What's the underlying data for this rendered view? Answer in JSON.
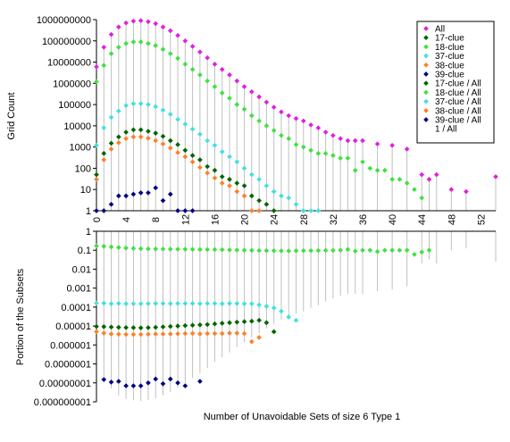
{
  "chart_data": {
    "type": "scatter",
    "xlabel": "Number of Unavoidable Sets of size 6 Type 1",
    "top": {
      "ylabel": "Grid Count",
      "scale": "log",
      "ylim": [
        1,
        1000000000
      ],
      "ytick_labels": [
        "1",
        "10",
        "100",
        "1000",
        "10000",
        "100000",
        "1000000",
        "10000000",
        "100000000",
        "1000000000"
      ]
    },
    "bottom": {
      "ylabel": "Portion of the Subsets",
      "scale": "log",
      "ylim": [
        1e-09,
        1
      ],
      "ytick_labels": [
        "1",
        "0.1",
        "0.01",
        "0.001",
        "0.0001",
        "0.00001",
        "0.000001",
        "0.0000001",
        "0.00000001",
        "0.000000001"
      ]
    },
    "xlim": [
      0,
      54
    ],
    "xtick_labels": [
      "0",
      "4",
      "8",
      "12",
      "16",
      "20",
      "24",
      "28",
      "32",
      "36",
      "40",
      "44",
      "48",
      "52"
    ],
    "legend_position": "top-right",
    "series": [
      {
        "name": "All",
        "panel": "top",
        "color": "#e020e0",
        "x": [
          0,
          1,
          2,
          3,
          4,
          5,
          6,
          7,
          8,
          9,
          10,
          11,
          12,
          13,
          14,
          15,
          16,
          17,
          18,
          19,
          20,
          21,
          22,
          23,
          24,
          25,
          26,
          27,
          28,
          29,
          30,
          31,
          32,
          33,
          34,
          35,
          36,
          38,
          40,
          42,
          44,
          45,
          46,
          48,
          50,
          54
        ],
        "y": [
          6000000,
          50000000,
          200000000,
          450000000,
          700000000,
          850000000,
          900000000,
          800000000,
          650000000,
          450000000,
          300000000,
          180000000,
          100000000,
          55000000,
          30000000,
          16000000,
          8000000,
          4500000,
          2500000,
          1300000,
          700000,
          400000,
          230000,
          130000,
          75000,
          45000,
          30000,
          22000,
          17000,
          11000,
          8000,
          5000,
          3500,
          2500,
          2000,
          2000,
          2000,
          1400,
          1200,
          800,
          50,
          30,
          50,
          10,
          8,
          40
        ]
      },
      {
        "name": "17-clue",
        "panel": "top",
        "color": "#006400",
        "x": [
          0,
          1,
          2,
          3,
          4,
          5,
          6,
          7,
          8,
          9,
          10,
          11,
          12,
          13,
          14,
          15,
          16,
          17,
          18,
          19,
          20,
          21,
          22,
          23,
          24
        ],
        "y": [
          50,
          500,
          1500,
          3000,
          5000,
          6500,
          6500,
          5500,
          4500,
          3200,
          2000,
          1300,
          700,
          400,
          250,
          120,
          80,
          40,
          30,
          20,
          15,
          5,
          3,
          2,
          1
        ]
      },
      {
        "name": "18-clue",
        "panel": "top",
        "color": "#40e040",
        "x": [
          0,
          1,
          2,
          3,
          4,
          5,
          6,
          7,
          8,
          9,
          10,
          11,
          12,
          13,
          14,
          15,
          16,
          17,
          18,
          19,
          20,
          21,
          22,
          23,
          24,
          25,
          26,
          27,
          28,
          29,
          30,
          31,
          32,
          33,
          34,
          35,
          36,
          37,
          38,
          39,
          40,
          41,
          42,
          43,
          44
        ],
        "y": [
          1200000,
          7000000,
          25000000,
          50000000,
          75000000,
          90000000,
          90000000,
          75000000,
          60000000,
          40000000,
          25000000,
          15000000,
          8000000,
          4500000,
          2500000,
          1300000,
          700000,
          350000,
          200000,
          100000,
          60000,
          30000,
          17000,
          10000,
          6000,
          3500,
          2500,
          1300,
          1000,
          700,
          500,
          500,
          400,
          300,
          300,
          80,
          200,
          100,
          80,
          80,
          30,
          30,
          20,
          10,
          4
        ]
      },
      {
        "name": "37-clue",
        "panel": "top",
        "color": "#40e0e0",
        "x": [
          0,
          1,
          2,
          3,
          4,
          5,
          6,
          7,
          8,
          9,
          10,
          11,
          12,
          13,
          14,
          15,
          16,
          17,
          18,
          19,
          20,
          21,
          22,
          23,
          24,
          25,
          26,
          27,
          28,
          29,
          30
        ],
        "y": [
          1200,
          8000,
          25000,
          50000,
          90000,
          110000,
          110000,
          100000,
          80000,
          55000,
          35000,
          20000,
          12000,
          7000,
          4000,
          2000,
          1200,
          600,
          350,
          200,
          100,
          50,
          30,
          15,
          8,
          5,
          4,
          2,
          1,
          1,
          1
        ]
      },
      {
        "name": "38-clue",
        "panel": "top",
        "color": "#ff7f27",
        "x": [
          0,
          1,
          2,
          3,
          4,
          5,
          6,
          7,
          8,
          9,
          10,
          11,
          12,
          13,
          14,
          15,
          16,
          17,
          18,
          19,
          20,
          21,
          22
        ],
        "y": [
          30,
          250,
          800,
          1600,
          2500,
          3000,
          3000,
          2600,
          2000,
          1400,
          900,
          550,
          350,
          200,
          110,
          60,
          35,
          20,
          15,
          8,
          5,
          1,
          1
        ]
      },
      {
        "name": "39-clue",
        "panel": "top",
        "color": "#000080",
        "x": [
          0,
          1,
          2,
          3,
          4,
          5,
          6,
          7,
          8,
          9,
          10,
          11,
          12,
          13
        ],
        "y": [
          1,
          1,
          2,
          5,
          5,
          6,
          7,
          7,
          12,
          3,
          6,
          1,
          1,
          1
        ]
      },
      {
        "name": "17-clue / All",
        "panel": "bottom",
        "color": "#006400",
        "x": [
          0,
          1,
          2,
          3,
          4,
          5,
          6,
          7,
          8,
          9,
          10,
          11,
          12,
          13,
          14,
          15,
          16,
          17,
          18,
          19,
          20,
          21,
          22,
          23,
          24
        ],
        "y": [
          9.5e-06,
          9.2e-06,
          8.8e-06,
          8.5e-06,
          8.3e-06,
          8.2e-06,
          8e-06,
          8.2e-06,
          8.5e-06,
          9e-06,
          9.5e-06,
          1e-05,
          1.05e-05,
          1.1e-05,
          1.15e-05,
          1.2e-05,
          1.3e-05,
          1.4e-05,
          1.5e-05,
          1.6e-05,
          1.7e-05,
          1.8e-05,
          2e-05,
          1.5e-05,
          5e-06
        ]
      },
      {
        "name": "18-clue / All",
        "panel": "bottom",
        "color": "#40e040",
        "x": [
          0,
          1,
          2,
          3,
          4,
          5,
          6,
          7,
          8,
          9,
          10,
          11,
          12,
          13,
          14,
          15,
          16,
          17,
          18,
          19,
          20,
          21,
          22,
          23,
          24,
          25,
          26,
          27,
          28,
          29,
          30,
          31,
          32,
          33,
          34,
          35,
          36,
          37,
          38,
          39,
          40,
          41,
          42,
          43,
          44,
          45
        ],
        "y": [
          0.17,
          0.16,
          0.15,
          0.14,
          0.13,
          0.125,
          0.12,
          0.118,
          0.116,
          0.115,
          0.114,
          0.113,
          0.112,
          0.111,
          0.11,
          0.109,
          0.108,
          0.106,
          0.104,
          0.102,
          0.1,
          0.098,
          0.096,
          0.095,
          0.094,
          0.093,
          0.092,
          0.094,
          0.095,
          0.095,
          0.096,
          0.097,
          0.098,
          0.1,
          0.11,
          0.09,
          0.1,
          0.1,
          0.085,
          0.1,
          0.1,
          0.1,
          0.1,
          0.06,
          0.08,
          0.1
        ]
      },
      {
        "name": "37-clue / All",
        "panel": "bottom",
        "color": "#40e0e0",
        "x": [
          0,
          1,
          2,
          3,
          4,
          5,
          6,
          7,
          8,
          9,
          10,
          11,
          12,
          13,
          14,
          15,
          16,
          17,
          18,
          19,
          20,
          21,
          22,
          23,
          24,
          25,
          26,
          27
        ],
        "y": [
          0.00016,
          0.00016,
          0.00015,
          0.000155,
          0.00015,
          0.00015,
          0.00015,
          0.000152,
          0.000155,
          0.000155,
          0.000152,
          0.000155,
          0.000155,
          0.000155,
          0.000152,
          0.000155,
          0.000155,
          0.00015,
          0.000155,
          0.000155,
          0.00015,
          0.00015,
          0.00013,
          0.00011,
          9e-05,
          6e-05,
          3e-05,
          2e-05
        ]
      },
      {
        "name": "38-clue / All",
        "panel": "bottom",
        "color": "#ff7f27",
        "x": [
          0,
          1,
          2,
          3,
          4,
          5,
          6,
          7,
          8,
          9,
          10,
          11,
          12,
          13,
          14,
          15,
          16,
          17,
          18,
          19,
          20,
          21,
          22
        ],
        "y": [
          5e-06,
          4.2e-06,
          3.8e-06,
          3.7e-06,
          3.6e-06,
          3.6e-06,
          3.6e-06,
          3.7e-06,
          3.8e-06,
          3.8e-06,
          3.8e-06,
          3.9e-06,
          4e-06,
          4.1e-06,
          3.8e-06,
          4e-06,
          4e-06,
          4e-06,
          4.2e-06,
          4.2e-06,
          4e-06,
          1.5e-06,
          2.5e-06
        ]
      },
      {
        "name": "39-clue / All",
        "panel": "bottom",
        "color": "#000080",
        "x": [
          1,
          2,
          3,
          4,
          5,
          6,
          7,
          8,
          9,
          10,
          11,
          12,
          14
        ],
        "y": [
          1.5e-08,
          1.1e-08,
          1.2e-08,
          7e-09,
          7e-09,
          7e-09,
          1e-08,
          1.6e-08,
          9e-09,
          1.6e-08,
          1e-08,
          7e-09,
          1.2e-08
        ]
      },
      {
        "name": "1 / All",
        "panel": "bottom",
        "color": "#c0c0c0",
        "x": [
          0,
          1,
          2,
          3,
          4,
          5,
          6,
          7,
          8,
          9,
          10,
          11,
          12,
          13,
          14,
          15,
          16,
          17,
          18,
          19,
          20,
          21,
          22,
          23,
          24,
          25,
          26,
          27,
          28,
          29,
          30,
          31,
          32,
          33,
          34,
          35,
          36,
          38,
          40,
          42,
          44,
          45,
          46,
          48,
          50,
          54
        ],
        "y": [
          1.7e-07,
          2e-08,
          5e-09,
          2.2e-09,
          1.4e-09,
          1.2e-09,
          1.1e-09,
          1.25e-09,
          1.5e-09,
          2.2e-09,
          3.3e-09,
          5.5e-09,
          1e-08,
          1.8e-08,
          3.3e-08,
          6.2e-08,
          1.25e-07,
          2.2e-07,
          4e-07,
          7.7e-07,
          1.4e-06,
          2.5e-06,
          4.3e-06,
          7.7e-06,
          1.3e-05,
          2.2e-05,
          3.3e-05,
          4.5e-05,
          5.9e-05,
          9.1e-05,
          0.000125,
          0.0002,
          0.00029,
          0.0004,
          0.0005,
          0.0005,
          0.0005,
          0.0007,
          0.00083,
          0.00125,
          0.02,
          0.033,
          0.02,
          0.1,
          0.125,
          0.025
        ],
        "style": "drop-line"
      }
    ]
  }
}
